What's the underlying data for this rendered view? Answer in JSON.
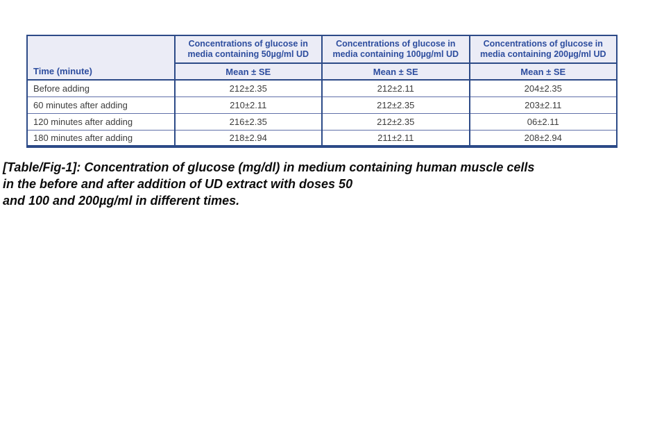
{
  "table": {
    "corner_header": "Time (minute)",
    "col_headers": [
      "Concentrations of glucose in media containing 50µg/ml UD",
      "Concentrations of glucose in media containing 100µg/ml UD",
      "Concentrations of glucose in media containing 200µg/ml UD"
    ],
    "subheaders": [
      "Mean ± SE",
      "Mean ± SE",
      "Mean ± SE"
    ],
    "rows": [
      {
        "time": "Before adding",
        "values": [
          "212±2.35",
          "212±2.11",
          "204±2.35"
        ]
      },
      {
        "time": "60 minutes after adding",
        "values": [
          "210±2.11",
          "212±2.35",
          "203±2.11"
        ]
      },
      {
        "time": "120 minutes after adding",
        "values": [
          "216±2.35",
          "212±2.35",
          "06±2.11"
        ]
      },
      {
        "time": "180 minutes after adding",
        "values": [
          "218±2.94",
          "211±2.11",
          "208±2.94"
        ]
      }
    ],
    "colors": {
      "header_bg": "#ebecf6",
      "header_text": "#2d4d9e",
      "border_dark": "#2c4a87",
      "row_divider": "#5f6fa8",
      "data_text": "#3c3c3c"
    }
  },
  "caption": {
    "lines": [
      "[Table/Fig-1]: Concentration of glucose (mg/dl) in medium containing human muscle cells",
      "in the before and after addition of UD extract with doses 50",
      "and 100 and 200µg/ml in different times."
    ]
  },
  "chart_data": {
    "type": "table",
    "columns": [
      "Time (minute)",
      "Concentrations of glucose in media containing 50µg/ml UD (Mean ± SE)",
      "Concentrations of glucose in media containing 100µg/ml UD (Mean ± SE)",
      "Concentrations of glucose in media containing 200µg/ml UD (Mean ± SE)"
    ],
    "rows": [
      [
        "Before adding",
        "212±2.35",
        "212±2.11",
        "204±2.35"
      ],
      [
        "60 minutes after adding",
        "210±2.11",
        "212±2.35",
        "203±2.11"
      ],
      [
        "120 minutes after adding",
        "216±2.35",
        "212±2.35",
        "06±2.11"
      ],
      [
        "180 minutes after adding",
        "218±2.94",
        "211±2.11",
        "208±2.94"
      ]
    ],
    "title": "[Table/Fig-1]: Concentration of glucose (mg/dl) in medium containing human muscle cells in the before and after addition of UD extract with doses 50 and 100 and 200µg/ml in different times."
  }
}
